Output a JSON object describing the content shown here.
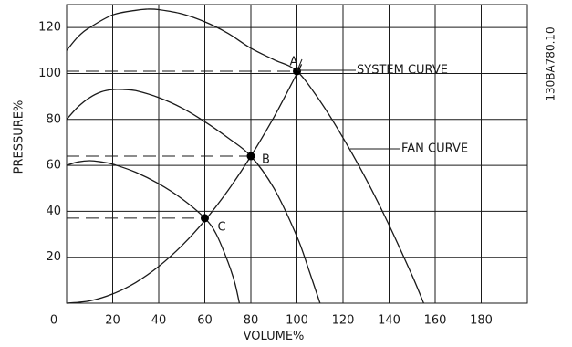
{
  "chart_data": {
    "type": "line",
    "xlabel": "VOLUME%",
    "ylabel": "PRESSURE%",
    "doc_ref": "130BA780.10",
    "xlim": [
      0,
      200
    ],
    "ylim": [
      0,
      130
    ],
    "x_ticks": [
      0,
      20,
      40,
      60,
      80,
      100,
      120,
      140,
      160,
      180
    ],
    "y_ticks": [
      20,
      40,
      60,
      80,
      100,
      120
    ],
    "grid": true,
    "series": [
      {
        "role": "fan-curve-100",
        "x": [
          0,
          5,
          10,
          20,
          30,
          35,
          40,
          50,
          60,
          70,
          80,
          90,
          100,
          110,
          120,
          130,
          140,
          150,
          155
        ],
        "y": [
          110,
          116,
          120,
          125.5,
          127.5,
          128,
          127.8,
          126,
          122.5,
          117.5,
          111,
          106,
          101,
          88,
          72,
          54,
          34,
          12,
          0
        ]
      },
      {
        "role": "fan-curve-80",
        "x": [
          0,
          5,
          10,
          15,
          20,
          25,
          30,
          40,
          50,
          60,
          70,
          80,
          90,
          100,
          105,
          110
        ],
        "y": [
          80,
          85.5,
          89.5,
          92,
          93,
          93,
          92.5,
          89.5,
          85,
          79,
          72,
          64,
          50,
          29,
          15,
          0
        ]
      },
      {
        "role": "fan-curve-60",
        "x": [
          0,
          5,
          10,
          15,
          20,
          30,
          40,
          50,
          60,
          65,
          70,
          73,
          75
        ],
        "y": [
          60,
          61.5,
          62,
          61.5,
          60.5,
          57,
          52,
          45.5,
          37,
          30,
          18,
          9,
          0
        ]
      },
      {
        "role": "system-curve",
        "x": [
          0,
          10,
          20,
          30,
          40,
          50,
          60,
          70,
          80,
          90,
          100,
          102
        ],
        "y": [
          0,
          1,
          4,
          9,
          16,
          25,
          36,
          49,
          64,
          81,
          100,
          104
        ]
      }
    ],
    "operating_points": [
      {
        "label": "A",
        "x": 100,
        "y": 101
      },
      {
        "label": "B",
        "x": 80,
        "y": 64
      },
      {
        "label": "C",
        "x": 60,
        "y": 37
      }
    ],
    "annotations": [
      {
        "text": "SYSTEM CURVE",
        "points_to": "system-curve"
      },
      {
        "text": "FAN CURVE",
        "points_to": "fan-curve-100"
      }
    ]
  }
}
